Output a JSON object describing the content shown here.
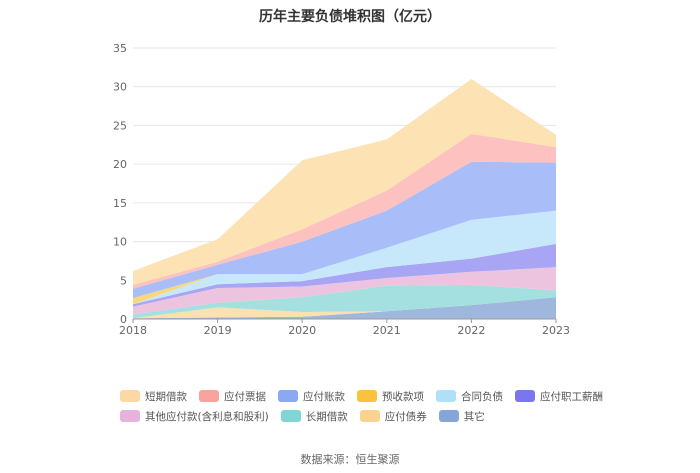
{
  "chart_data": {
    "type": "area",
    "stacked": true,
    "title": "历年主要负债堆积图（亿元）",
    "x": [
      "2018",
      "2019",
      "2020",
      "2021",
      "2022",
      "2023"
    ],
    "ylim": [
      0,
      35
    ],
    "yticks": [
      0,
      5,
      10,
      15,
      20,
      25,
      30,
      35
    ],
    "grid": true,
    "legend_position": "bottom",
    "series": [
      {
        "name": "其它",
        "color": "#9fb6dd",
        "values": [
          0.1,
          0.2,
          0.3,
          1.0,
          1.8,
          2.8
        ]
      },
      {
        "name": "应付债券",
        "color": "#fbe0b0",
        "values": [
          0.0,
          1.3,
          0.6,
          0.0,
          0.0,
          0.0
        ]
      },
      {
        "name": "长期借款",
        "color": "#a4e0df",
        "values": [
          0.5,
          0.6,
          1.9,
          3.3,
          2.6,
          0.9
        ]
      },
      {
        "name": "其他应付款(含利息和股利)",
        "color": "#ecc4df",
        "values": [
          1.0,
          1.9,
          1.4,
          1.0,
          1.7,
          3.0
        ]
      },
      {
        "name": "应付职工薪酬",
        "color": "#a8a5f4",
        "values": [
          0.3,
          0.5,
          0.7,
          1.4,
          1.7,
          3.0
        ]
      },
      {
        "name": "合同负债",
        "color": "#c7e7fb",
        "values": [
          0.0,
          1.3,
          0.9,
          2.5,
          5.0,
          4.3
        ]
      },
      {
        "name": "预收款项",
        "color": "#fcd77a",
        "values": [
          0.8,
          0.0,
          0.0,
          0.0,
          0.0,
          0.0
        ]
      },
      {
        "name": "应付账款",
        "color": "#a9bef9",
        "values": [
          1.2,
          1.2,
          4.2,
          4.8,
          7.5,
          6.2
        ]
      },
      {
        "name": "应付票据",
        "color": "#fdc1c0",
        "values": [
          0.5,
          0.4,
          1.6,
          2.6,
          3.6,
          2.0
        ]
      },
      {
        "name": "短期借款",
        "color": "#fde2b4",
        "values": [
          1.8,
          2.9,
          8.9,
          6.6,
          7.1,
          1.6
        ]
      }
    ],
    "legend": [
      {
        "name": "短期借款",
        "color": "#fdd7a4"
      },
      {
        "name": "应付票据",
        "color": "#f8a39b"
      },
      {
        "name": "应付账款",
        "color": "#8aa9f2"
      },
      {
        "name": "预收款项",
        "color": "#fcc23f"
      },
      {
        "name": "合同负债",
        "color": "#aee0f7"
      },
      {
        "name": "应付职工薪酬",
        "color": "#7b76ee"
      },
      {
        "name": "其他应付款(含利息和股利)",
        "color": "#e6b3dc"
      },
      {
        "name": "长期借款",
        "color": "#7fd6d4"
      },
      {
        "name": "应付债券",
        "color": "#fbd38f"
      },
      {
        "name": "其它",
        "color": "#86a6d8"
      }
    ]
  },
  "source": "数据来源：恒生聚源"
}
